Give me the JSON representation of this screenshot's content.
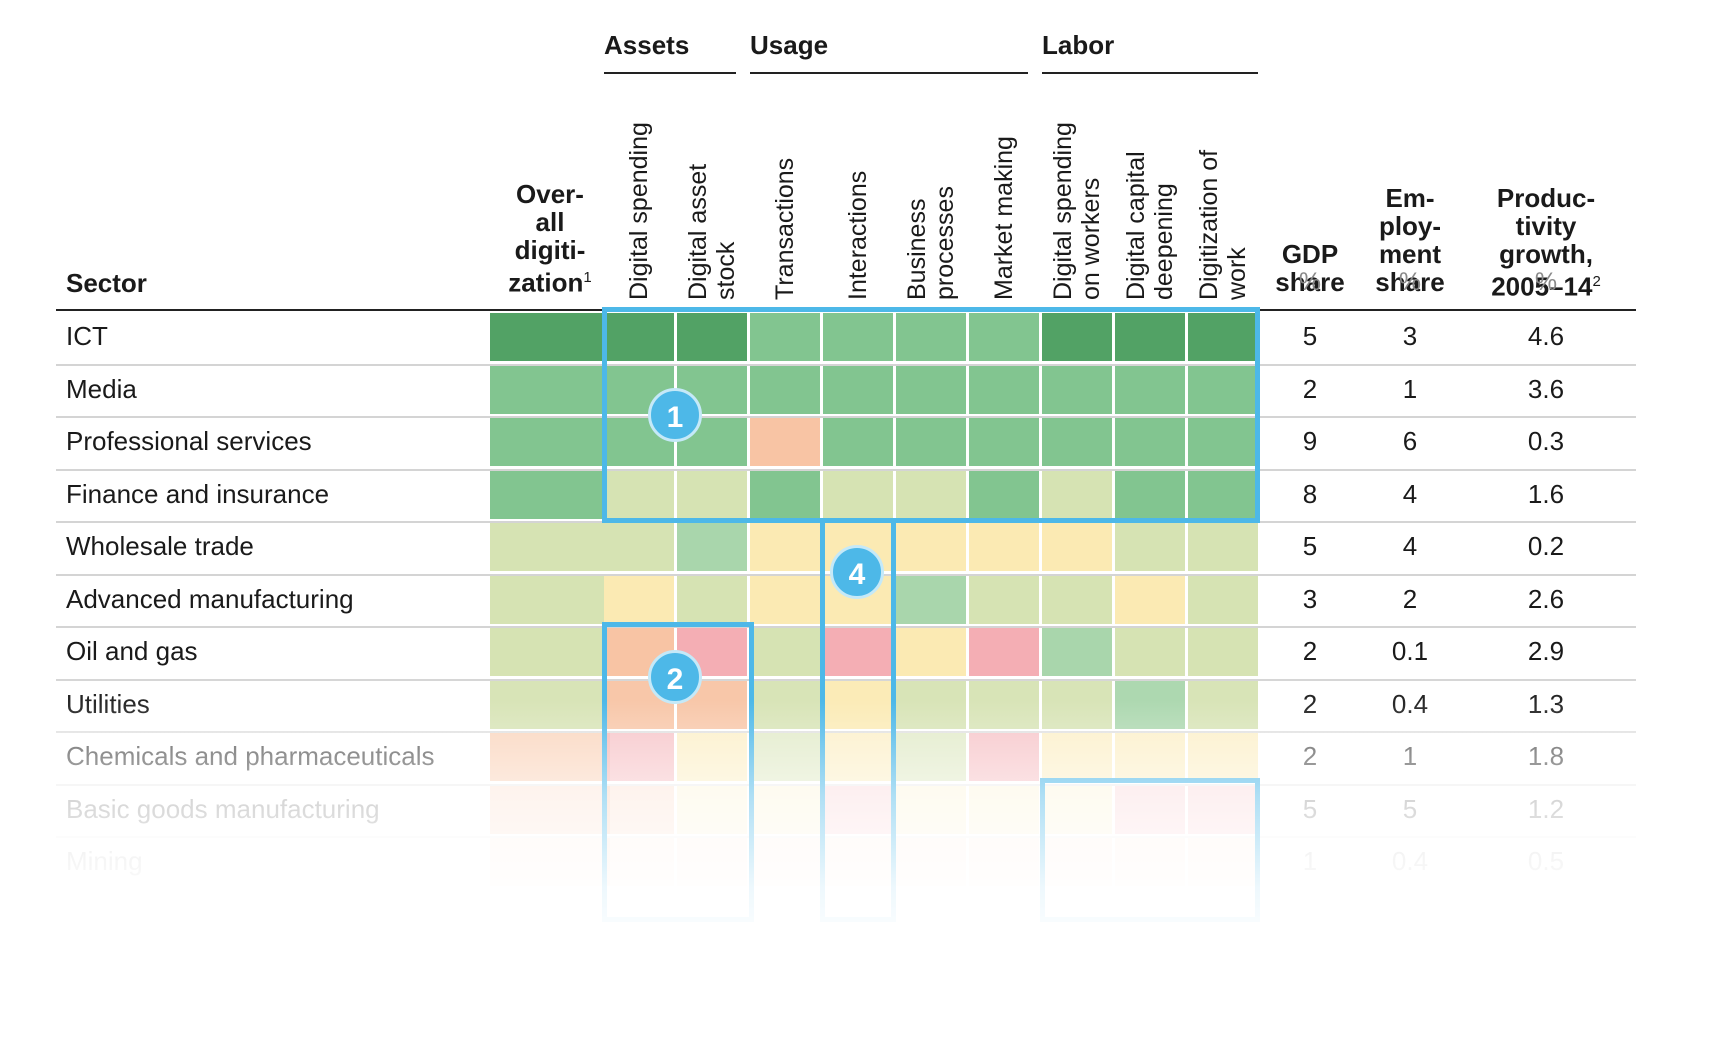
{
  "chart_data": {
    "type": "heatmap",
    "row_header": "Sector",
    "column_groups": [
      {
        "label": "Assets",
        "columns": [
          "Digital spending",
          "Digital asset stock"
        ]
      },
      {
        "label": "Usage",
        "columns": [
          "Transactions",
          "Interactions",
          "Business processes",
          "Market making"
        ]
      },
      {
        "label": "Labor",
        "columns": [
          "Digital spending on workers",
          "Digital capital deepening",
          "Digitization of work"
        ]
      }
    ],
    "overall_column": {
      "label_lines": [
        "Over-",
        "all",
        "digiti-",
        "zation"
      ],
      "footnote": "1"
    },
    "heat_columns": [
      {
        "key": "overall",
        "lines": [
          "Over-all digitization"
        ]
      },
      {
        "key": "digital_spending",
        "lines": [
          "Digital spending"
        ]
      },
      {
        "key": "digital_asset_stock",
        "lines": [
          "Digital asset",
          "stock"
        ]
      },
      {
        "key": "transactions",
        "lines": [
          "Transactions"
        ]
      },
      {
        "key": "interactions",
        "lines": [
          "Interactions"
        ]
      },
      {
        "key": "business_processes",
        "lines": [
          "Business",
          "processes"
        ]
      },
      {
        "key": "market_making",
        "lines": [
          "Market making"
        ]
      },
      {
        "key": "spending_on_workers",
        "lines": [
          "Digital spending",
          "on workers"
        ]
      },
      {
        "key": "capital_deepening",
        "lines": [
          "Digital capital",
          "deepening"
        ]
      },
      {
        "key": "digitization_of_work",
        "lines": [
          "Digitization of",
          "work"
        ]
      }
    ],
    "numeric_columns": [
      {
        "key": "gdp",
        "label_lines": [
          "GDP",
          "share"
        ],
        "unit": "%"
      },
      {
        "key": "emp",
        "label_lines": [
          "Em-",
          "ploy-",
          "ment",
          "share"
        ],
        "unit": "%"
      },
      {
        "key": "prod",
        "label_lines": [
          "Produc-",
          "tivity",
          "growth,",
          "2005–14"
        ],
        "footnote": "2",
        "unit": "%"
      }
    ],
    "rows": [
      {
        "sector": "ICT",
        "gdp": "5",
        "emp": "3",
        "prod": "4.6"
      },
      {
        "sector": "Media",
        "gdp": "2",
        "emp": "1",
        "prod": "3.6"
      },
      {
        "sector": "Professional services",
        "gdp": "9",
        "emp": "6",
        "prod": "0.3"
      },
      {
        "sector": "Finance and insurance",
        "gdp": "8",
        "emp": "4",
        "prod": "1.6"
      },
      {
        "sector": "Wholesale trade",
        "gdp": "5",
        "emp": "4",
        "prod": "0.2"
      },
      {
        "sector": "Advanced manufacturing",
        "gdp": "3",
        "emp": "2",
        "prod": "2.6"
      },
      {
        "sector": "Oil and gas",
        "gdp": "2",
        "emp": "0.1",
        "prod": "2.9"
      },
      {
        "sector": "Utilities",
        "gdp": "2",
        "emp": "0.4",
        "prod": "1.3"
      },
      {
        "sector": "Chemicals and pharmaceuticals",
        "gdp": "2",
        "emp": "1",
        "prod": "1.8"
      },
      {
        "sector": "Basic goods manufacturing",
        "gdp": "5",
        "emp": "5",
        "prod": "1.2"
      },
      {
        "sector": "Mining",
        "gdp": "1",
        "emp": "0.4",
        "prod": "0.5"
      }
    ],
    "heat_levels": [
      [
        5,
        5,
        5,
        4,
        4,
        4,
        4,
        5,
        5,
        5
      ],
      [
        4,
        4,
        4,
        4,
        4,
        4,
        4,
        4,
        4,
        4
      ],
      [
        4,
        4,
        4,
        0,
        4,
        4,
        4,
        4,
        4,
        4
      ],
      [
        4,
        2,
        2,
        4,
        2,
        2,
        4,
        2,
        4,
        4
      ],
      [
        2,
        2,
        3,
        1,
        1,
        1,
        1,
        1,
        2,
        2
      ],
      [
        2,
        1,
        2,
        1,
        1,
        3,
        2,
        2,
        1,
        2
      ],
      [
        2,
        0,
        -1,
        2,
        -1,
        1,
        -1,
        3,
        2,
        2
      ],
      [
        2,
        0,
        0,
        2,
        1,
        2,
        2,
        2,
        3,
        2
      ],
      [
        0,
        -1,
        1,
        2,
        1,
        2,
        -1,
        1,
        1,
        1
      ],
      [
        0,
        0,
        1,
        1,
        -1,
        1,
        1,
        1,
        -1,
        -1
      ],
      [
        0,
        0,
        0,
        0,
        0,
        0,
        0,
        0,
        0,
        0
      ]
    ],
    "level_colors": {
      "-1": "#f4aeb4",
      "0": "#f8c4a4",
      "1": "#fbeab3",
      "2": "#d6e3b3",
      "3": "#a9d6ac",
      "4": "#82c590",
      "5": "#52a265"
    },
    "row_opacity": [
      1,
      1,
      1,
      1,
      1,
      1,
      1,
      0.95,
      0.7,
      0.4,
      0.2
    ],
    "highlights": [
      {
        "badge": "1",
        "box_color": "#4db8e8"
      },
      {
        "badge": "2",
        "box_color": "#4db8e8"
      },
      {
        "badge": "4",
        "box_color": "#4db8e8"
      }
    ]
  }
}
